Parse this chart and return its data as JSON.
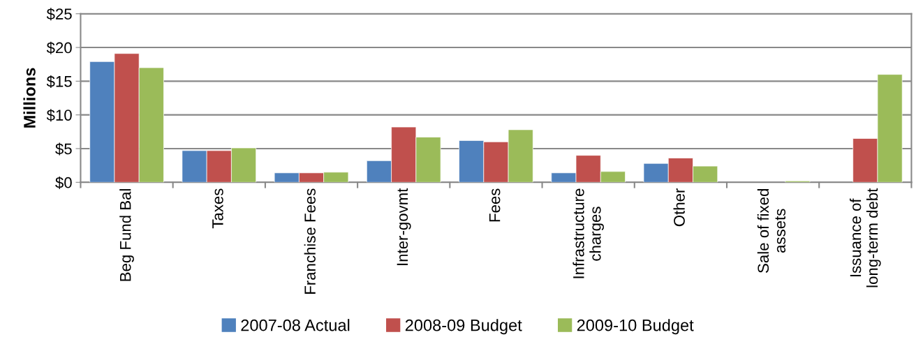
{
  "chart_data": {
    "type": "bar",
    "ylabel": "Millions",
    "categories": [
      "Beg Fund Bal",
      "Taxes",
      "Franchise Fees",
      "Inter-govmt",
      "Fees",
      "Infrastructure\ncharges",
      "Other",
      "Sale of fixed\nassets",
      "Issuance of\nlong-term debt"
    ],
    "series": [
      {
        "name": "2007-08 Actual",
        "color": "#4f81bd",
        "values": [
          17.9,
          4.7,
          1.4,
          3.2,
          6.2,
          1.4,
          2.8,
          null,
          null
        ]
      },
      {
        "name": "2008-09 Budget",
        "color": "#c0504d",
        "values": [
          19.1,
          4.7,
          1.4,
          8.2,
          6.0,
          4.0,
          3.6,
          null,
          6.5
        ]
      },
      {
        "name": "2009-10 Budget",
        "color": "#9bbb59",
        "values": [
          17.0,
          5.1,
          1.5,
          6.7,
          7.8,
          1.6,
          2.4,
          0.2,
          16.0
        ]
      }
    ],
    "ylim": [
      0,
      25
    ],
    "yticks": [
      {
        "value": 0,
        "label": "$0"
      },
      {
        "value": 5,
        "label": "$5"
      },
      {
        "value": 10,
        "label": "$10"
      },
      {
        "value": 15,
        "label": "$15"
      },
      {
        "value": 20,
        "label": "$20"
      },
      {
        "value": 25,
        "label": "$25"
      }
    ],
    "grid": "y",
    "legend": "bottom"
  }
}
